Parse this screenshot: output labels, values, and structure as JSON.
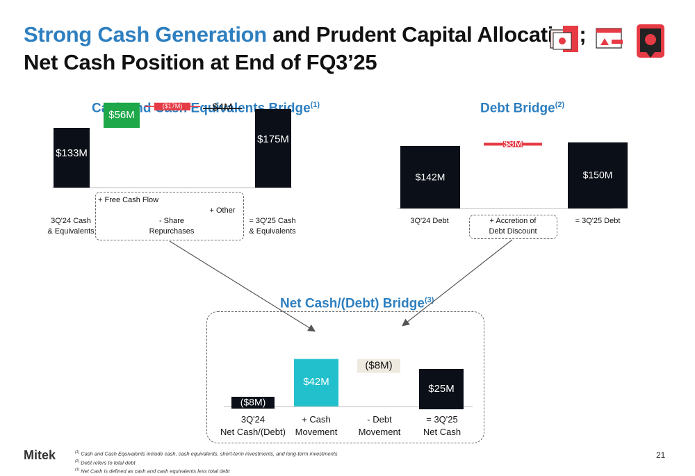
{
  "title": {
    "accent": "Strong Cash Generation",
    "rest": " and Prudent Capital Allocation;",
    "line2": "Net Cash Position at End of FQ3’25"
  },
  "colors": {
    "accent": "#2e7fc0",
    "dark": "#0b0f17",
    "green": "#1ea84a",
    "red": "#e63a44",
    "teal": "#22c0cc",
    "beige": "#efeae0",
    "brand": "#e63a44"
  },
  "icons": [
    "banking-cards-icon",
    "browser-alert-icon",
    "phone-security-icon"
  ],
  "sections": {
    "cash": {
      "title": "Cash and Cash Equivalents Bridge",
      "note": "(1)"
    },
    "debt": {
      "title": "Debt Bridge",
      "note": "(2)"
    },
    "net": {
      "title": "Net Cash/(Debt) Bridge",
      "note": "(3)"
    }
  },
  "chart_data": [
    {
      "type": "bar",
      "title": "Cash and Cash Equivalents Bridge",
      "categories": [
        "3Q'24 Cash & Equivalents",
        "+ Free Cash Flow",
        "- Share Repurchases",
        "+ Other",
        "= 3Q'25 Cash & Equivalents"
      ],
      "values": [
        133,
        56,
        -17,
        4,
        175
      ],
      "labels": [
        "$133M",
        "$56M",
        "($17M)",
        "$4M",
        "$175M"
      ],
      "units": "$M"
    },
    {
      "type": "bar",
      "title": "Debt Bridge",
      "categories": [
        "3Q'24 Debt",
        "+ Accretion of Debt Discount",
        "= 3Q'25 Debt"
      ],
      "values": [
        142,
        8,
        150
      ],
      "labels": [
        "$142M",
        "$8M",
        "$150M"
      ],
      "units": "$M"
    },
    {
      "type": "bar",
      "title": "Net Cash/(Debt) Bridge",
      "categories": [
        "3Q'24 Net Cash/(Debt)",
        "+ Cash Movement",
        "- Debt Movement",
        "= 3Q'25 Net Cash"
      ],
      "values": [
        -8,
        42,
        -8,
        25
      ],
      "labels": [
        "($8M)",
        "$42M",
        "($8M)",
        "$25M"
      ],
      "units": "$M"
    }
  ],
  "cash_labels": {
    "c0": "3Q'24 Cash",
    "c0b": "& Equivalents",
    "fcf": "+ Free Cash Flow",
    "other": "+ Other",
    "share": "- Share",
    "shareb": "Repurchases",
    "c4": "= 3Q'25 Cash",
    "c4b": "& Equivalents"
  },
  "debt_labels": {
    "d0": "3Q'24 Debt",
    "acc": "+ Accretion of",
    "accb": "Debt Discount",
    "d2": "= 3Q'25 Debt"
  },
  "net_labels": {
    "n0": "3Q'24",
    "n0b": "Net Cash/(Debt)",
    "n1": "+ Cash",
    "n1b": "Movement",
    "n2": "- Debt",
    "n2b": "Movement",
    "n3": "= 3Q'25",
    "n3b": "Net Cash"
  },
  "footnotes": [
    {
      "sup": "(1)",
      "text": "Cash and Cash Equivalents include cash, cash equivalents, short-term investments, and long-term investments"
    },
    {
      "sup": "(2)",
      "text": "Debt refers to total debt"
    },
    {
      "sup": "(3)",
      "text": "Net Cash is defined as cash and cash equivalents less total debt"
    }
  ],
  "brand": "Mitek",
  "page_number": "21"
}
